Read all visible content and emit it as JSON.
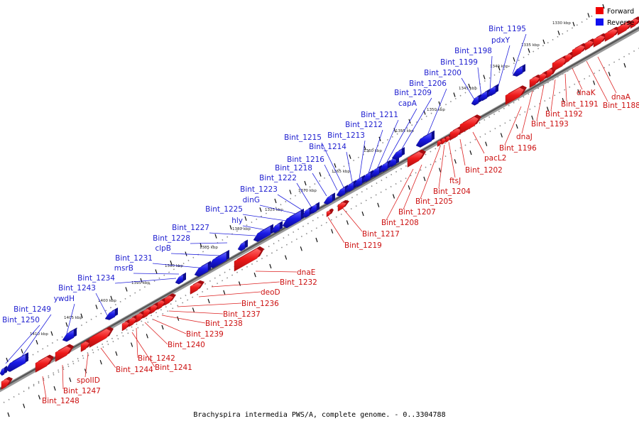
{
  "footer": "Brachyspira intermedia PWS/A, complete genome. - 0..3304788",
  "legend": {
    "forward": "Forward",
    "reverse": "Reverse"
  },
  "colors": {
    "forward": "#e8141c",
    "forward_dark": "#a40c10",
    "reverse": "#1a1ae6",
    "reverse_dark": "#0c0c8c",
    "backbone": "#777777"
  },
  "axis": {
    "start_kbp": 1330,
    "end_kbp": 1410,
    "kbp_labels": [
      "1330 kbp",
      "1335 kbp",
      "1340 kbp",
      "1345 kbp",
      "1350 kbp",
      "1355 kbp",
      "1360 kbp",
      "1365 kbp",
      "1370 kbp",
      "1375 kbp",
      "1380 kbp",
      "1385 kbp",
      "1390 kbp",
      "1395 kbp",
      "1400 kbp",
      "1405 kbp",
      "1410 kbp"
    ]
  },
  "reverse_labels": [
    "Bint_1195",
    "pdxY",
    "Bint_1198",
    "Bint_1199",
    "Bint_1200",
    "Bint_1206",
    "Bint_1209",
    "capA",
    "Bint_1211",
    "Bint_1212",
    "Bint_1213",
    "Bint_1215",
    "Bint_1214",
    "Bint_1216",
    "Bint_1218",
    "Bint_1222",
    "Bint_1223",
    "dinG",
    "Bint_1225",
    "hly",
    "Bint_1227",
    "Bint_1228",
    "clpB",
    "Bint_1231",
    "msrB",
    "Bint_1234",
    "Bint_1243",
    "ywdH",
    "Bint_1249",
    "Bint_1250"
  ],
  "forward_labels": [
    "dnaA",
    "Bint_1188",
    "dnaK",
    "Bint_1191",
    "Bint_1192",
    "Bint_1193",
    "dnaJ",
    "Bint_1196",
    "pacL2",
    "Bint_1202",
    "ftsJ",
    "Bint_1204",
    "Bint_1205",
    "Bint_1207",
    "Bint_1208",
    "Bint_1217",
    "Bint_1219",
    "dnaE",
    "Bint_1232",
    "deoD",
    "Bint_1236",
    "Bint_1237",
    "Bint_1238",
    "Bint_1239",
    "Bint_1240",
    "Bint_1242",
    "Bint_1241",
    "Bint_1244",
    "spoIID",
    "Bint_1247",
    "Bint_1248"
  ]
}
